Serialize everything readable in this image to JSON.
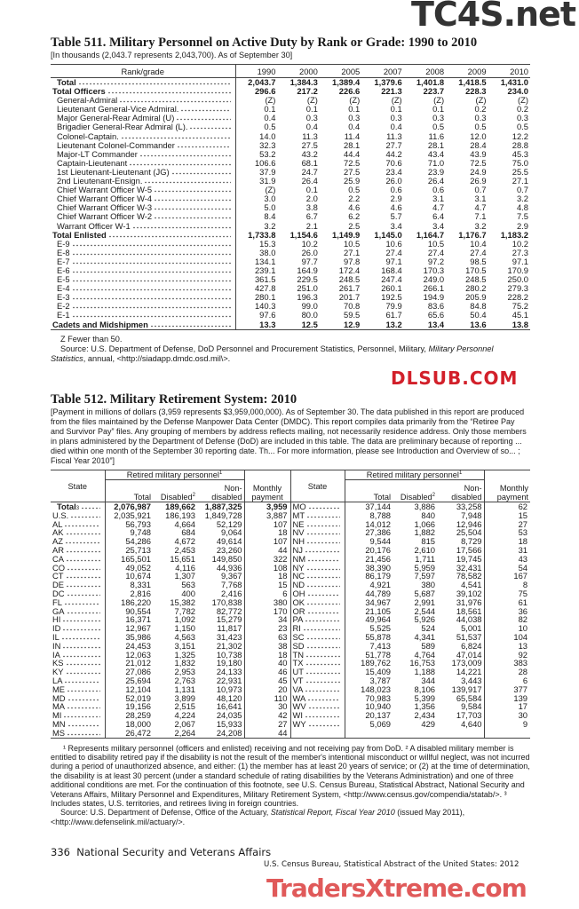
{
  "watermarks": {
    "top": "TC4S.net",
    "middle": "DLSUB.COM",
    "bottom": "TradersXtreme.com"
  },
  "table511": {
    "title": "Table 511. Military Personnel on Active Duty by Rank or Grade: 1990 to 2010",
    "note": "[In thousands (2,043.7 represents 2,043,700). As of September 30]",
    "header": [
      "Rank/grade",
      "1990",
      "2000",
      "2005",
      "2007",
      "2008",
      "2009",
      "2010"
    ],
    "rows": [
      {
        "label": "Total",
        "bold": true,
        "indent": 1,
        "values": [
          "2,043.7",
          "1,384.3",
          "1,389.4",
          "1,379.6",
          "1,401.8",
          "1,418.5",
          "1,431.0"
        ]
      },
      {
        "label": "Total Officers",
        "bold": true,
        "indent": 0,
        "values": [
          "296.6",
          "217.2",
          "226.6",
          "221.3",
          "223.7",
          "228.3",
          "234.0"
        ]
      },
      {
        "label": "General-Admiral",
        "indent": 1,
        "values": [
          "(Z)",
          "(Z)",
          "(Z)",
          "(Z)",
          "(Z)",
          "(Z)",
          "(Z)"
        ]
      },
      {
        "label": "Lieutenant General-Vice Admiral.",
        "indent": 1,
        "values": [
          "0.1",
          "0.1",
          "0.1",
          "0.1",
          "0.1",
          "0.2",
          "0.2"
        ]
      },
      {
        "label": "Major General-Rear Admiral (U)",
        "indent": 1,
        "values": [
          "0.4",
          "0.3",
          "0.3",
          "0.3",
          "0.3",
          "0.3",
          "0.3"
        ]
      },
      {
        "label": "Brigadier General-Rear Admiral (L).",
        "indent": 1,
        "values": [
          "0.5",
          "0.4",
          "0.4",
          "0.4",
          "0.5",
          "0.5",
          "0.5"
        ]
      },
      {
        "label": "Colonel-Captain.",
        "indent": 1,
        "values": [
          "14.0",
          "11.3",
          "11.4",
          "11.3",
          "11.6",
          "12.0",
          "12.2"
        ]
      },
      {
        "label": "Lieutenant Colonel-Commander",
        "indent": 1,
        "values": [
          "32.3",
          "27.5",
          "28.1",
          "27.7",
          "28.1",
          "28.4",
          "28.8"
        ]
      },
      {
        "label": "Major-LT Commander",
        "indent": 1,
        "values": [
          "53.2",
          "43.2",
          "44.4",
          "44.2",
          "43.4",
          "43.9",
          "45.3"
        ]
      },
      {
        "label": "Captain-Lieutenant",
        "indent": 1,
        "values": [
          "106.6",
          "68.1",
          "72.5",
          "70.6",
          "71.0",
          "72.5",
          "75.0"
        ]
      },
      {
        "label": "1st Lieutenant-Lieutenant (JG)",
        "indent": 1,
        "values": [
          "37.9",
          "24.7",
          "27.5",
          "23.4",
          "23.9",
          "24.9",
          "25.5"
        ]
      },
      {
        "label": "2nd Lieutenant-Ensign.",
        "indent": 1,
        "values": [
          "31.9",
          "26.4",
          "25.9",
          "26.0",
          "26.4",
          "26.9",
          "27.1"
        ]
      },
      {
        "label": "Chief Warrant Officer W-5",
        "indent": 1,
        "values": [
          "(Z)",
          "0.1",
          "0.5",
          "0.6",
          "0.6",
          "0.7",
          "0.7"
        ]
      },
      {
        "label": "Chief Warrant Officer W-4",
        "indent": 1,
        "values": [
          "3.0",
          "2.0",
          "2.2",
          "2.9",
          "3.1",
          "3.1",
          "3.2"
        ]
      },
      {
        "label": "Chief Warrant Officer W-3",
        "indent": 1,
        "values": [
          "5.0",
          "3.8",
          "4.6",
          "4.6",
          "4.7",
          "4.7",
          "4.8"
        ]
      },
      {
        "label": "Chief Warrant Officer W-2",
        "indent": 1,
        "values": [
          "8.4",
          "6.7",
          "6.2",
          "5.7",
          "6.4",
          "7.1",
          "7.5"
        ]
      },
      {
        "label": "Warrant Officer W-1",
        "indent": 1,
        "values": [
          "3.2",
          "2.1",
          "2.5",
          "3.4",
          "3.4",
          "3.2",
          "2.9"
        ]
      },
      {
        "label": "Total Enlisted",
        "bold": true,
        "indent": 0,
        "values": [
          "1,733.8",
          "1,154.6",
          "1,149.9",
          "1,145.0",
          "1,164.7",
          "1,176.7",
          "1,183.2"
        ]
      },
      {
        "label": "E-9",
        "indent": 1,
        "values": [
          "15.3",
          "10.2",
          "10.5",
          "10.6",
          "10.5",
          "10.4",
          "10.2"
        ]
      },
      {
        "label": "E-8",
        "indent": 1,
        "values": [
          "38.0",
          "26.0",
          "27.1",
          "27.4",
          "27.4",
          "27.4",
          "27.3"
        ]
      },
      {
        "label": "E-7",
        "indent": 1,
        "values": [
          "134.1",
          "97.7",
          "97.8",
          "97.1",
          "97.2",
          "98.5",
          "97.1"
        ]
      },
      {
        "label": "E-6",
        "indent": 1,
        "values": [
          "239.1",
          "164.9",
          "172.4",
          "168.4",
          "170.3",
          "170.5",
          "170.9"
        ]
      },
      {
        "label": "E-5",
        "indent": 1,
        "values": [
          "361.5",
          "229.5",
          "248.5",
          "247.4",
          "249.0",
          "248.5",
          "250.0"
        ]
      },
      {
        "label": "E-4",
        "indent": 1,
        "values": [
          "427.8",
          "251.0",
          "261.7",
          "260.1",
          "266.1",
          "280.2",
          "279.3"
        ]
      },
      {
        "label": "E-3",
        "indent": 1,
        "values": [
          "280.1",
          "196.3",
          "201.7",
          "192.5",
          "194.9",
          "205.9",
          "228.2"
        ]
      },
      {
        "label": "E-2",
        "indent": 1,
        "values": [
          "140.3",
          "99.0",
          "70.8",
          "79.9",
          "83.6",
          "84.8",
          "75.2"
        ]
      },
      {
        "label": "E-1",
        "indent": 1,
        "values": [
          "97.6",
          "80.0",
          "59.5",
          "61.7",
          "65.6",
          "50.4",
          "45.1"
        ]
      },
      {
        "label": "Cadets and Midshipmen",
        "bold": true,
        "indent": 0,
        "values": [
          "13.3",
          "12.5",
          "12.9",
          "13.2",
          "13.4",
          "13.6",
          "13.8"
        ]
      }
    ],
    "footnote": "Z Fewer than 50.",
    "source_prefix": "Source: U.S. Department of Defense, DoD Personnel and Procurement Statistics, Personnel, Military, ",
    "source_italic": "Military Personnel Statistics",
    "source_suffix": ", annual, <http://siadapp.dmdc.osd.mil\\>."
  },
  "table512": {
    "title": "Table 512. Military Retirement System: 2010",
    "note": "[Payment in millions of dollars (3,959 represents $3,959,000,000). As of September 30. The data published in this report are produced from the files maintained by the Defense Manpower Data Center (DMDC). This report compiles data primarily from the “Retiree Pay and Survivor Pay” files. Any grouping of members by address reflects mailing, not necessarily residence address. Only those members in plans administered by the Department of Defense (DoD) are included in this table. The data are preliminary because of reporting ... died within one month of the September 30 reporting date. Th... For more information, please see Introduction and Overview of so... ; Fiscal Year 2010”]",
    "header": {
      "state": "State",
      "group": "Retired military personnel",
      "group_sup": "1",
      "total": "Total",
      "disabled": "Disabled",
      "disabled_sup": "2",
      "nondisabled": "Non-disabled",
      "monthly": "Monthly payment"
    },
    "left_rows": [
      {
        "state": "Total",
        "sup": "3",
        "bold": true,
        "values": [
          "2,076,987",
          "189,662",
          "1,887,325",
          "3,959"
        ]
      },
      {
        "state": "U.S.",
        "values": [
          "2,035,921",
          "186,193",
          "1,849,728",
          "3,887"
        ]
      },
      {
        "state": "AL",
        "values": [
          "56,793",
          "4,664",
          "52,129",
          "107"
        ]
      },
      {
        "state": "AK",
        "values": [
          "9,748",
          "684",
          "9,064",
          "18"
        ]
      },
      {
        "state": "AZ",
        "values": [
          "54,286",
          "4,672",
          "49,614",
          "107"
        ]
      },
      {
        "state": "AR",
        "values": [
          "25,713",
          "2,453",
          "23,260",
          "44"
        ]
      },
      {
        "state": "CA",
        "values": [
          "165,501",
          "15,651",
          "149,850",
          "322"
        ]
      },
      {
        "state": "CO",
        "values": [
          "49,052",
          "4,116",
          "44,936",
          "108"
        ]
      },
      {
        "state": "CT",
        "values": [
          "10,674",
          "1,307",
          "9,367",
          "18"
        ]
      },
      {
        "state": "DE",
        "values": [
          "8,331",
          "563",
          "7,768",
          "15"
        ]
      },
      {
        "state": "DC",
        "values": [
          "2,816",
          "400",
          "2,416",
          "6"
        ]
      },
      {
        "state": "FL",
        "values": [
          "186,220",
          "15,382",
          "170,838",
          "380"
        ]
      },
      {
        "state": "GA",
        "values": [
          "90,554",
          "7,782",
          "82,772",
          "170"
        ]
      },
      {
        "state": "HI",
        "values": [
          "16,371",
          "1,092",
          "15,279",
          "34"
        ]
      },
      {
        "state": "ID",
        "values": [
          "12,967",
          "1,150",
          "11,817",
          "23"
        ]
      },
      {
        "state": "IL",
        "values": [
          "35,986",
          "4,563",
          "31,423",
          "63"
        ]
      },
      {
        "state": "IN",
        "values": [
          "24,453",
          "3,151",
          "21,302",
          "38"
        ]
      },
      {
        "state": "IA",
        "values": [
          "12,063",
          "1,325",
          "10,738",
          "18"
        ]
      },
      {
        "state": "KS",
        "values": [
          "21,012",
          "1,832",
          "19,180",
          "40"
        ]
      },
      {
        "state": "KY",
        "values": [
          "27,086",
          "2,953",
          "24,133",
          "46"
        ]
      },
      {
        "state": "LA",
        "values": [
          "25,694",
          "2,763",
          "22,931",
          "45"
        ]
      },
      {
        "state": "ME",
        "values": [
          "12,104",
          "1,131",
          "10,973",
          "20"
        ]
      },
      {
        "state": "MD",
        "values": [
          "52,019",
          "3,899",
          "48,120",
          "110"
        ]
      },
      {
        "state": "MA",
        "values": [
          "19,156",
          "2,515",
          "16,641",
          "30"
        ]
      },
      {
        "state": "MI",
        "values": [
          "28,259",
          "4,224",
          "24,035",
          "42"
        ]
      },
      {
        "state": "MN",
        "values": [
          "18,000",
          "2,067",
          "15,933",
          "27"
        ]
      },
      {
        "state": "MS",
        "values": [
          "26,472",
          "2,264",
          "24,208",
          "44"
        ]
      }
    ],
    "right_rows": [
      {
        "state": "MO",
        "values": [
          "37,144",
          "3,886",
          "33,258",
          "62"
        ]
      },
      {
        "state": "MT",
        "values": [
          "8,788",
          "840",
          "7,948",
          "15"
        ]
      },
      {
        "state": "NE",
        "values": [
          "14,012",
          "1,066",
          "12,946",
          "27"
        ]
      },
      {
        "state": "NV",
        "values": [
          "27,386",
          "1,882",
          "25,504",
          "53"
        ]
      },
      {
        "state": "NH",
        "values": [
          "9,544",
          "815",
          "8,729",
          "18"
        ]
      },
      {
        "state": "NJ",
        "values": [
          "20,176",
          "2,610",
          "17,566",
          "31"
        ]
      },
      {
        "state": "NM",
        "values": [
          "21,456",
          "1,711",
          "19,745",
          "43"
        ]
      },
      {
        "state": "NY",
        "values": [
          "38,390",
          "5,959",
          "32,431",
          "54"
        ]
      },
      {
        "state": "NC",
        "values": [
          "86,179",
          "7,597",
          "78,582",
          "167"
        ]
      },
      {
        "state": "ND",
        "values": [
          "4,921",
          "380",
          "4,541",
          "8"
        ]
      },
      {
        "state": "OH",
        "values": [
          "44,789",
          "5,687",
          "39,102",
          "75"
        ]
      },
      {
        "state": "OK",
        "values": [
          "34,967",
          "2,991",
          "31,976",
          "61"
        ]
      },
      {
        "state": "OR",
        "values": [
          "21,105",
          "2,544",
          "18,561",
          "36"
        ]
      },
      {
        "state": "PA",
        "values": [
          "49,964",
          "5,926",
          "44,038",
          "82"
        ]
      },
      {
        "state": "RI",
        "values": [
          "5,525",
          "524",
          "5,001",
          "10"
        ]
      },
      {
        "state": "SC",
        "values": [
          "55,878",
          "4,341",
          "51,537",
          "104"
        ]
      },
      {
        "state": "SD",
        "values": [
          "7,413",
          "589",
          "6,824",
          "13"
        ]
      },
      {
        "state": "TN",
        "values": [
          "51,778",
          "4,764",
          "47,014",
          "92"
        ]
      },
      {
        "state": "TX",
        "values": [
          "189,762",
          "16,753",
          "173,009",
          "383"
        ]
      },
      {
        "state": "UT",
        "values": [
          "15,409",
          "1,188",
          "14,221",
          "28"
        ]
      },
      {
        "state": "VT",
        "values": [
          "3,787",
          "344",
          "3,443",
          "6"
        ]
      },
      {
        "state": "VA",
        "values": [
          "148,023",
          "8,106",
          "139,917",
          "377"
        ]
      },
      {
        "state": "WA",
        "values": [
          "70,983",
          "5,399",
          "65,584",
          "139"
        ]
      },
      {
        "state": "WV",
        "values": [
          "10,940",
          "1,356",
          "9,584",
          "17"
        ]
      },
      {
        "state": "WI",
        "values": [
          "20,137",
          "2,434",
          "17,703",
          "30"
        ]
      },
      {
        "state": "WY",
        "values": [
          "5,069",
          "429",
          "4,640",
          "9"
        ]
      }
    ],
    "footnote": "¹ Represents military personnel (officers and enlisted) receiving and not receiving pay from DoD. ² A disabled military member is entitled to disability retired pay if the disability is not the result of the member's intentional misconduct or willful neglect, was not incurred during a period of unauthorized absence, and either: (1) the member has at least 20 years of service; or (2) at the time of determination, the disability is at least 30 percent (under a standard schedule of rating disabilities by the Veterans Administration) and one of three additional conditions are met. For the continuation of this footnote, see U.S. Census Bureau, Statistical Abstract, National Security and Veterans Affairs, Military Personnel and Expenditures, Military Retirement System, <http://www.census.gov/compendia/statab/>. ³ Includes states, U.S. territories, and retirees living in foreign countries.",
    "source_prefix": "Source: U.S. Department of Defense, Office of the Actuary, ",
    "source_italic": "Statistical Report, Fiscal Year 2010",
    "source_suffix": " (issued May 2011), <http://www.defenselink.mil/actuary/>."
  },
  "footer": {
    "page": "336  National Security and Veterans Affairs",
    "publication": "U.S. Census Bureau, Statistical Abstract of the United States: 2012"
  }
}
